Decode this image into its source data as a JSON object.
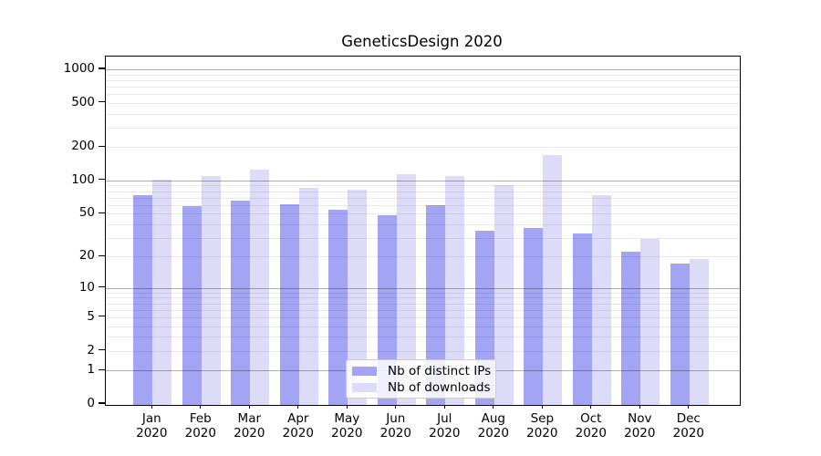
{
  "chart_data": {
    "type": "bar",
    "title": "GeneticsDesign 2020",
    "x_months": [
      "Jan",
      "Feb",
      "Mar",
      "Apr",
      "May",
      "Jun",
      "Jul",
      "Aug",
      "Sep",
      "Oct",
      "Nov",
      "Dec"
    ],
    "x_year": "2020",
    "series": [
      {
        "name": "Nb of distinct IPs",
        "color": "#a4a4f4",
        "values": [
          73,
          59,
          65,
          61,
          54,
          48,
          60,
          35,
          37,
          33,
          22,
          17
        ]
      },
      {
        "name": "Nb of downloads",
        "color": "#dcdcf9",
        "values": [
          102,
          110,
          125,
          85,
          82,
          114,
          110,
          91,
          170,
          73,
          29,
          19
        ]
      }
    ],
    "y_ticks": [
      0,
      1,
      2,
      5,
      10,
      20,
      50,
      100,
      200,
      500,
      1000
    ],
    "y_scale": "log10(1+value)",
    "ylim": [
      0,
      1300
    ],
    "grid": {
      "major_gridlines_at": [
        1,
        10,
        100,
        1000
      ],
      "minor_gridlines_at": "2-9 within each decade",
      "gridlines_drawn_above_bars": true
    },
    "legend": {
      "position": "inside plot, lower middle",
      "entries": [
        "Nb of distinct IPs",
        "Nb of downloads"
      ]
    }
  }
}
